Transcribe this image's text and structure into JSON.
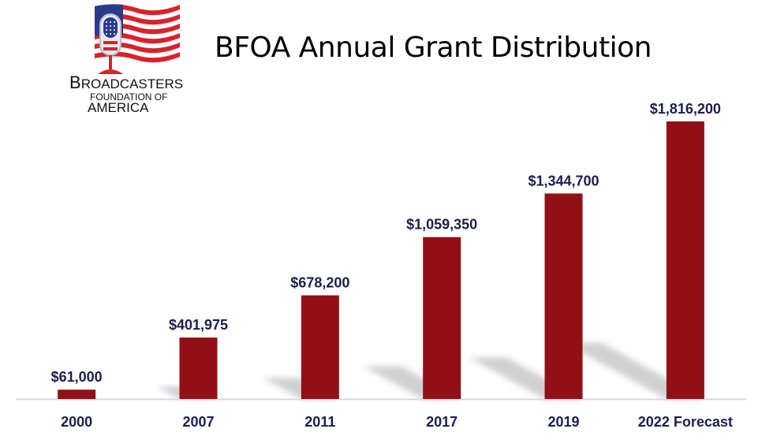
{
  "logo": {
    "line1_big": "B",
    "line1_rest": "ROADCASTERS",
    "line2": "FOUNDATION OF",
    "line3": "AMERICA",
    "icon": "flag-microphone-icon"
  },
  "colors": {
    "bar": "#911016",
    "label": "#1a1f4d",
    "axis": "#d9d6ee",
    "shadow": "#c8c8c8"
  },
  "chart_data": {
    "type": "bar",
    "title": "BFOA Annual Grant Distribution",
    "xlabel": "",
    "ylabel": "",
    "categories": [
      "2000",
      "2007",
      "2011",
      "2017",
      "2019",
      "2022 Forecast"
    ],
    "values": [
      61000,
      401975,
      678200,
      1059350,
      1344700,
      1816200
    ],
    "data_labels": [
      "$61,000",
      "$401,975",
      "$678,200",
      "$1,059,350",
      "$1,344,700",
      "$1,816,200"
    ],
    "ylim": [
      0,
      1816200
    ],
    "grid": false,
    "legend": "none"
  }
}
